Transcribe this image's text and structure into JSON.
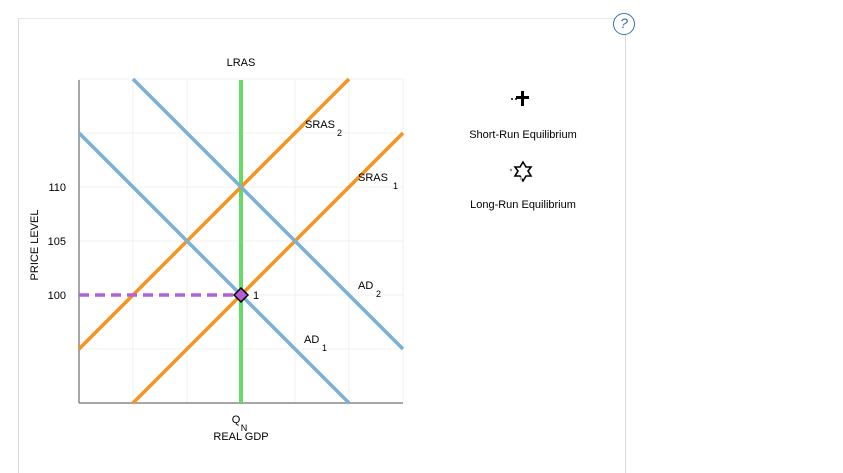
{
  "help": {
    "label": "?"
  },
  "chart_data": {
    "type": "line",
    "title": "",
    "xlabel": "REAL GDP",
    "ylabel": "PRICE LEVEL",
    "yticks": [
      "110",
      "105",
      "100"
    ],
    "xticks": [
      {
        "main": "Q",
        "sub": "N"
      }
    ],
    "curves": [
      {
        "key": "lras",
        "name": "LRAS",
        "color": "#63dd63"
      },
      {
        "key": "sras2",
        "name": "SRAS",
        "sub": "2",
        "color": "#f7941d"
      },
      {
        "key": "sras1",
        "name": "SRAS",
        "sub": "1",
        "color": "#f7941d"
      },
      {
        "key": "ad2",
        "name": "AD",
        "sub": "2",
        "color": "#7bafd4"
      },
      {
        "key": "ad1",
        "name": "AD",
        "sub": "1",
        "color": "#7bafd4"
      }
    ],
    "equilibrium": {
      "label": "1",
      "price": "100",
      "color": "#b061d8"
    },
    "legend": [
      {
        "key": "short",
        "label": "Short-Run Equilibrium",
        "icon": "plus-icon"
      },
      {
        "key": "long",
        "label": "Long-Run Equilibrium",
        "icon": "star-icon"
      }
    ]
  }
}
